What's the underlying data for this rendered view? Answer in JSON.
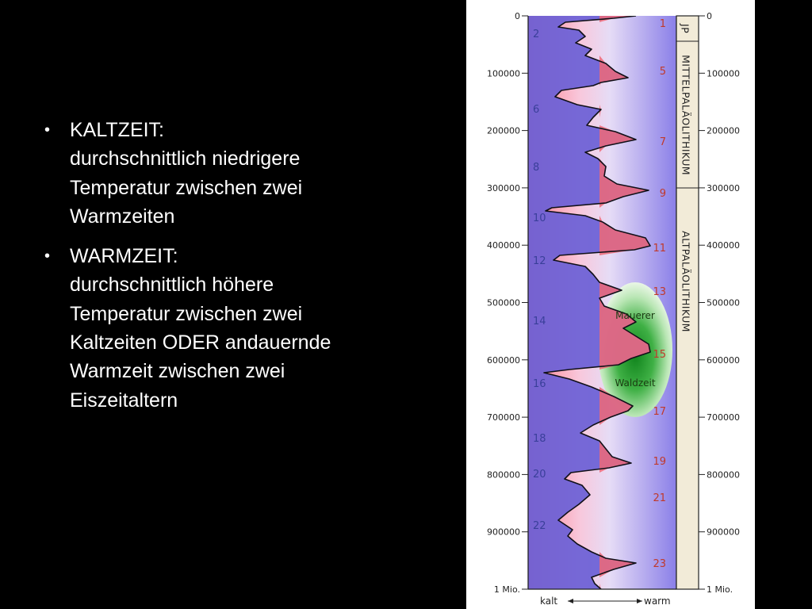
{
  "bullets": [
    {
      "title": "KALTZEIT:",
      "text": "durchschnittlich niedrigere Temperatur zwischen zwei Warmzeiten"
    },
    {
      "title": "WARMZEIT:",
      "text": "durchschnittlich höhere Temperatur zwischen zwei Kaltzeiten ODER andauernde Warmzeit zwischen zwei Eiszeitaltern"
    }
  ],
  "figure": {
    "axis_ticks_left": [
      "0",
      "100000",
      "200000",
      "300000",
      "400000",
      "500000",
      "600000",
      "700000",
      "800000",
      "900000",
      "1 Mio."
    ],
    "axis_ticks_right": [
      "0",
      "100000",
      "200000",
      "300000",
      "400000",
      "500000",
      "600000",
      "700000",
      "800000",
      "900000",
      "1 Mio."
    ],
    "even_stages": [
      "2",
      "6",
      "8",
      "10",
      "12",
      "14",
      "16",
      "18",
      "20",
      "22"
    ],
    "odd_stages": [
      "1",
      "5",
      "7",
      "9",
      "11",
      "13",
      "15",
      "17",
      "19",
      "21",
      "23"
    ],
    "periods": [
      "JP",
      "MITTELPALÄOLITHIKUM",
      "ALTPALÄOLITHIKUM"
    ],
    "highlight": {
      "label_top": "Mauerer",
      "label_bottom": "Waldzeit"
    },
    "legend": {
      "cold": "kalt",
      "warm": "warm"
    },
    "colors": {
      "cold_fill": "#6a5fd6",
      "warm_fill": "#ee6a78",
      "highlight": "#1e9a2a"
    }
  }
}
